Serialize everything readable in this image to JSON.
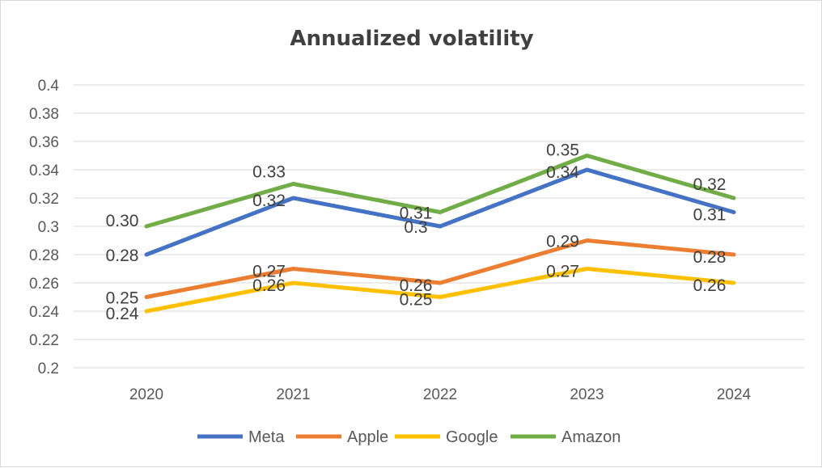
{
  "chart_data": {
    "type": "line",
    "title": "Annualized volatility",
    "xlabel": "",
    "ylabel": "",
    "categories": [
      "2020",
      "2021",
      "2022",
      "2023",
      "2024"
    ],
    "ylim": [
      0.2,
      0.4
    ],
    "yticks": [
      "0.2",
      "0.22",
      "0.24",
      "0.26",
      "0.28",
      "0.3",
      "0.32",
      "0.34",
      "0.36",
      "0.38",
      "0.4"
    ],
    "grid": true,
    "legend_position": "bottom",
    "series": [
      {
        "name": "Meta",
        "color": "#4472C4",
        "values": [
          0.28,
          0.32,
          0.3,
          0.34,
          0.31
        ],
        "labels": [
          "0.28",
          "0.32",
          "0.3",
          "0.34",
          "0.31"
        ]
      },
      {
        "name": "Apple",
        "color": "#ED7D31",
        "values": [
          0.25,
          0.27,
          0.26,
          0.29,
          0.28
        ],
        "labels": [
          "0.25",
          "0.27",
          "0.26",
          "0.29",
          "0.28"
        ]
      },
      {
        "name": "Google",
        "color": "#FFC000",
        "values": [
          0.24,
          0.26,
          0.25,
          0.27,
          0.26
        ],
        "labels": [
          "0.24",
          "0.26",
          "0.25",
          "0.27",
          "0.26"
        ]
      },
      {
        "name": "Amazon",
        "color": "#70AD47",
        "values": [
          0.3,
          0.33,
          0.31,
          0.35,
          0.32
        ],
        "labels": [
          "0.30",
          "0.33",
          "0.31",
          "0.35",
          "0.32"
        ]
      }
    ]
  }
}
